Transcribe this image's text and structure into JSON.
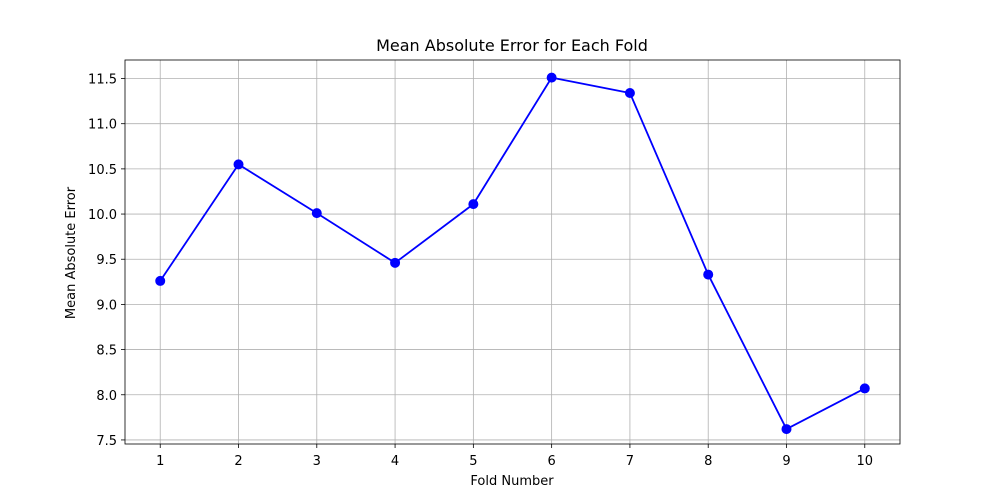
{
  "chart_data": {
    "type": "line",
    "title": "Mean Absolute Error for Each Fold",
    "xlabel": "Fold Number",
    "ylabel": "Mean Absolute Error",
    "x": [
      1,
      2,
      3,
      4,
      5,
      6,
      7,
      8,
      9,
      10
    ],
    "series": [
      {
        "values": [
          9.26,
          10.55,
          10.01,
          9.46,
          10.11,
          11.51,
          11.34,
          9.33,
          7.62,
          8.07
        ],
        "color": "#0000ff",
        "marker": "circle"
      }
    ],
    "xlim": [
      0.55,
      10.45
    ],
    "ylim": [
      7.455,
      11.705
    ],
    "xticks": [
      1,
      2,
      3,
      4,
      5,
      6,
      7,
      8,
      9,
      10
    ],
    "xtick_labels": [
      "1",
      "2",
      "3",
      "4",
      "5",
      "6",
      "7",
      "8",
      "9",
      "10"
    ],
    "yticks": [
      7.5,
      8.0,
      8.5,
      9.0,
      9.5,
      10.0,
      10.5,
      11.0,
      11.5
    ],
    "ytick_labels": [
      "7.5",
      "8.0",
      "8.5",
      "9.0",
      "9.5",
      "10.0",
      "10.5",
      "11.0",
      "11.5"
    ],
    "grid": true,
    "legend": "none"
  }
}
